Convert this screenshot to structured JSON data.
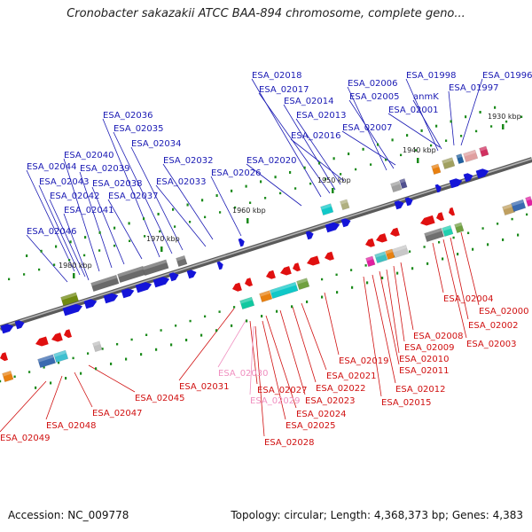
{
  "title": "Cronobacter sakazakii ATCC BAA-894 chromosome, complete geno...",
  "accession": "Accession: NC_009778",
  "stats": "Topology: circular; Length: 4,368,373 bp; Genes: 4,383",
  "colors": {
    "forward_label": "#1a1ab4",
    "reverse_label": "#d01010",
    "pseudo_label": "#f090c0",
    "forward_gene": "#1414d8",
    "reverse_gene": "#e01010",
    "tick": "#1a8a1a",
    "axis": "#808080"
  },
  "ticks": [
    {
      "label": "1980 kbp"
    },
    {
      "label": "1970 kbp"
    },
    {
      "label": "1960 kbp"
    },
    {
      "label": "1950 kbp"
    },
    {
      "label": "1940 kbp"
    },
    {
      "label": "1930 kbp"
    }
  ],
  "forward_labels": [
    "ESA_02046",
    "ESA_02041",
    "ESA_02042",
    "ESA_02043",
    "ESA_02044",
    "ESA_02040",
    "ESA_02039",
    "ESA_02038",
    "ESA_02037",
    "ESA_02036",
    "ESA_02035",
    "ESA_02034",
    "ESA_02033",
    "ESA_02032",
    "ESA_02026",
    "ESA_02020",
    "ESA_02018",
    "ESA_02017",
    "ESA_02014",
    "ESA_02013",
    "ESA_02016",
    "ESA_02006",
    "ESA_02005",
    "ESA_02007",
    "ESA_01998",
    "anmK",
    "ESA_02001",
    "ESA_01997",
    "ESA_01996"
  ],
  "reverse_labels": [
    "ESA_02049",
    "ESA_02048",
    "ESA_02047",
    "ESA_02045",
    "ESA_02031",
    "ESA_02027",
    "ESA_02028",
    "ESA_02024",
    "ESA_02025",
    "ESA_02023",
    "ESA_02022",
    "ESA_02021",
    "ESA_02019",
    "ESA_02015",
    "ESA_02012",
    "ESA_02011",
    "ESA_02010",
    "ESA_02009",
    "ESA_02008",
    "ESA_02004",
    "ESA_02003",
    "ESA_02002",
    "ESA_02000"
  ],
  "pseudo_labels": [
    "ESA_02030",
    "ESA_02029"
  ]
}
